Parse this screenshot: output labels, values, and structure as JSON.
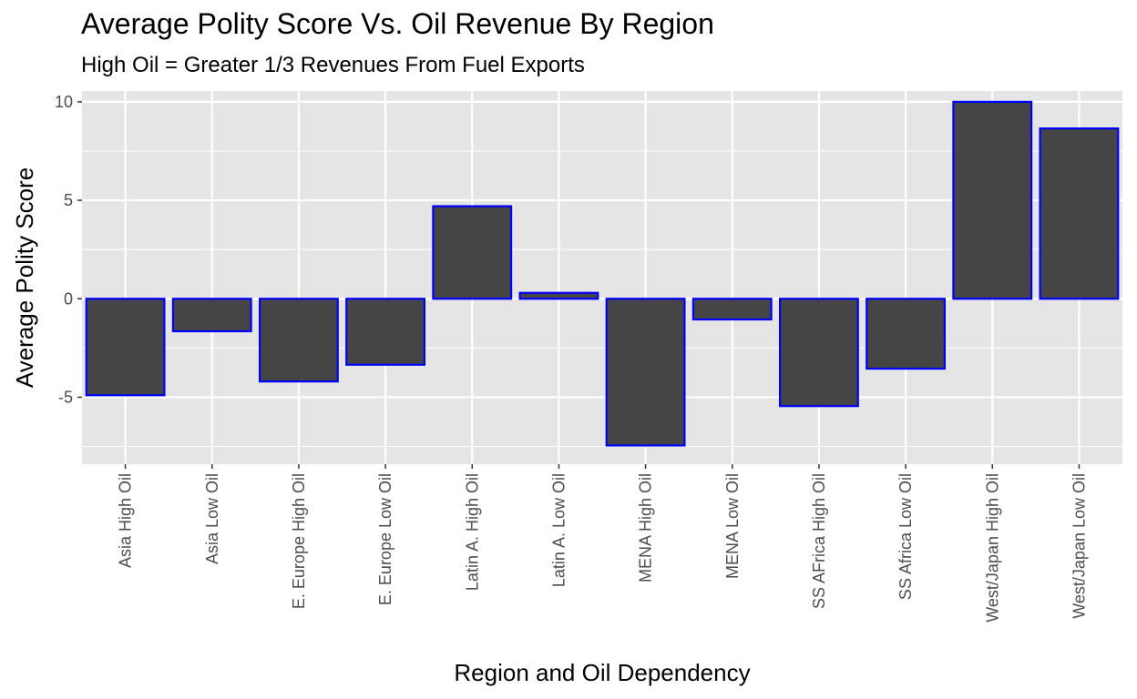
{
  "chart_data": {
    "type": "bar",
    "title": "Average Polity Score Vs. Oil Revenue By Region",
    "subtitle": "High Oil = Greater 1/3 Revenues From Fuel Exports",
    "xlabel": "Region and Oil Dependency",
    "ylabel": "Average Polity Score",
    "categories": [
      "Asia High Oil",
      "Asia Low Oil",
      "E. Europe High Oil",
      "E. Europe Low Oil",
      "Latin A. High Oil",
      "Latin A. Low Oil",
      "MENA High Oil",
      "MENA Low Oil",
      "SS AFrica High Oil",
      "SS Africa Low Oil",
      "West/Japan High Oil",
      "West/Japan Low Oil"
    ],
    "values": [
      -4.9,
      -1.65,
      -4.2,
      -3.35,
      4.7,
      0.3,
      -7.45,
      -1.05,
      -5.45,
      -3.55,
      10.0,
      8.65
    ],
    "ylim": [
      -8.4,
      10.55
    ],
    "yticks": [
      -5,
      0,
      5,
      10
    ],
    "ytick_labels": [
      "-5",
      "0",
      "5",
      "10"
    ],
    "grid": true,
    "colors": {
      "panel": "#e5e5e5",
      "gridline": "#ffffff",
      "bar_fill": "#454545",
      "bar_outline": "#0000ff",
      "tick_text": "#4d4d4d",
      "tick_mark": "#333333"
    }
  }
}
